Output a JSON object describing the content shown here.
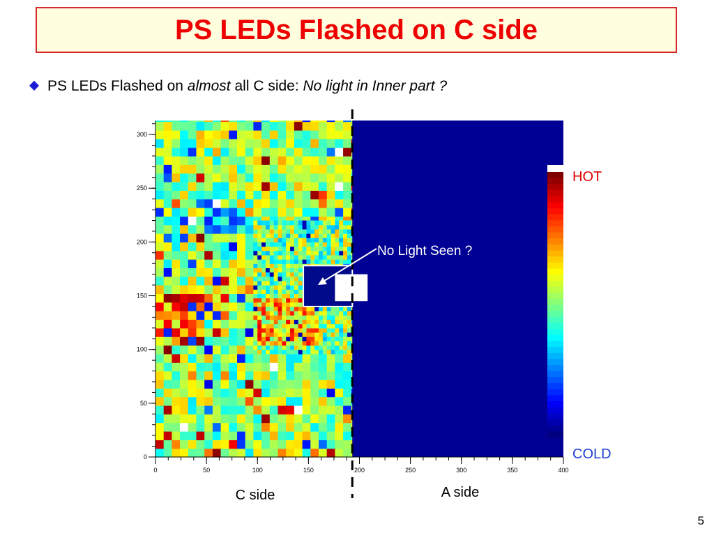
{
  "slide": {
    "title": "PS LEDs Flashed on C side",
    "bullet": {
      "part1": "PS LEDs Flashed on ",
      "part2": "almost",
      "part3": " all C side: ",
      "part4": "No light in Inner part ?"
    },
    "page_number": "5",
    "colors": {
      "title": "#ee0000",
      "title_bg": "#ffffe0",
      "bullet": "#1c1cd6"
    }
  },
  "chart_data": {
    "type": "heatmap",
    "x_ticks": [
      "0",
      "50",
      "100",
      "150",
      "200",
      "250",
      "300",
      "350",
      "400"
    ],
    "y_ticks": [
      "0",
      "50",
      "100",
      "150",
      "200",
      "250",
      "300"
    ],
    "xlim": [
      0,
      400
    ],
    "ylim": [
      0,
      313
    ],
    "c_side_xrange": [
      0,
      193
    ],
    "a_side_xrange": [
      193,
      400
    ],
    "inner_empty_region": {
      "x": [
        145,
        193
      ],
      "y": [
        140,
        178
      ]
    },
    "divider_x": 193,
    "region_labels": {
      "c_side": "C side",
      "a_side": "A side"
    },
    "annotation": "No Light Seen ?",
    "colorbar": {
      "hot_label": "HOT",
      "cold_label": "COLD",
      "hot_color": "#dd0000",
      "cold_color": "#1f3fcf"
    },
    "a_side_value": "empty (minimum color)"
  }
}
